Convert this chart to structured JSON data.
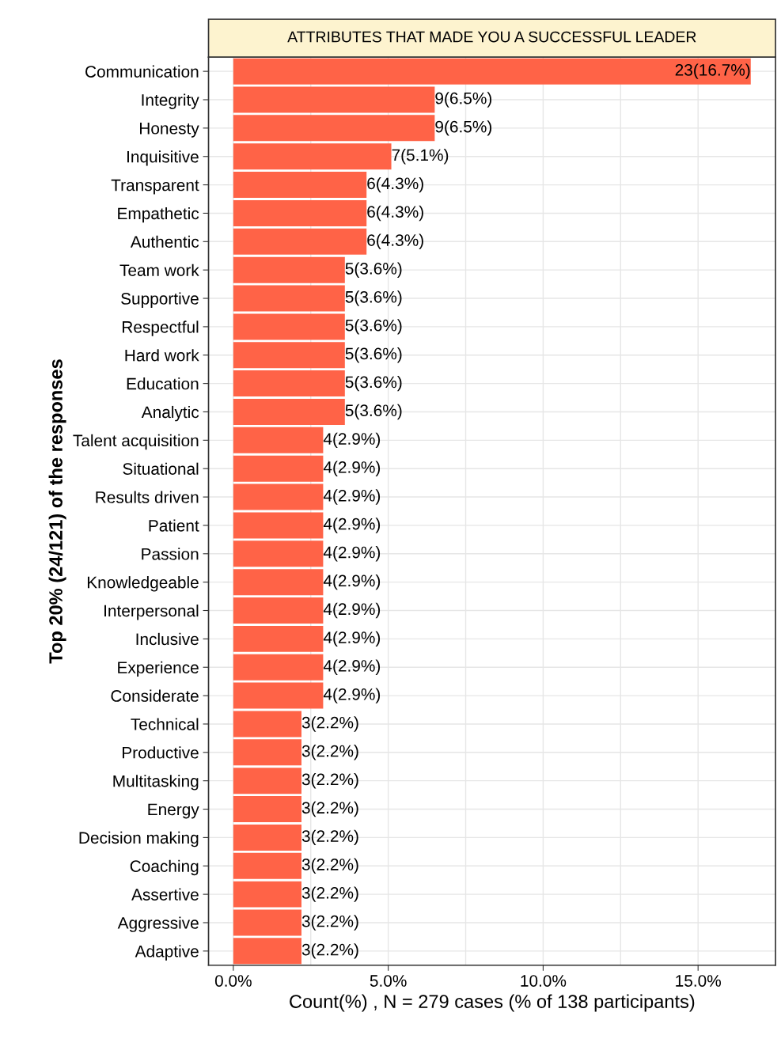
{
  "chart_data": {
    "type": "bar",
    "orientation": "horizontal",
    "title": "ATTRIBUTES THAT MADE YOU A SUCCESSFUL LEADER",
    "xlabel": "Count(%) , N = 279 cases (% of 138 participants)",
    "ylabel": "Top 20% (24/121) of the responses",
    "categories": [
      "Communication",
      "Integrity",
      "Honesty",
      "Inquisitive",
      "Transparent",
      "Empathetic",
      "Authentic",
      "Team work",
      "Supportive",
      "Respectful",
      "Hard work",
      "Education",
      "Analytic",
      "Talent acquisition",
      "Situational",
      "Results driven",
      "Patient",
      "Passion",
      "Knowledgeable",
      "Interpersonal",
      "Inclusive",
      "Experience",
      "Considerate",
      "Technical",
      "Productive",
      "Multitasking",
      "Energy",
      "Decision making",
      "Coaching",
      "Assertive",
      "Aggressive",
      "Adaptive"
    ],
    "values": [
      16.7,
      6.5,
      6.5,
      5.1,
      4.3,
      4.3,
      4.3,
      3.6,
      3.6,
      3.6,
      3.6,
      3.6,
      3.6,
      2.9,
      2.9,
      2.9,
      2.9,
      2.9,
      2.9,
      2.9,
      2.9,
      2.9,
      2.9,
      2.2,
      2.2,
      2.2,
      2.2,
      2.2,
      2.2,
      2.2,
      2.2,
      2.2
    ],
    "value_labels": [
      "23(16.7%)",
      "9(6.5%)",
      "9(6.5%)",
      "7(5.1%)",
      "6(4.3%)",
      "6(4.3%)",
      "6(4.3%)",
      "5(3.6%)",
      "5(3.6%)",
      "5(3.6%)",
      "5(3.6%)",
      "5(3.6%)",
      "5(3.6%)",
      "4(2.9%)",
      "4(2.9%)",
      "4(2.9%)",
      "4(2.9%)",
      "4(2.9%)",
      "4(2.9%)",
      "4(2.9%)",
      "4(2.9%)",
      "4(2.9%)",
      "4(2.9%)",
      "3(2.2%)",
      "3(2.2%)",
      "3(2.2%)",
      "3(2.2%)",
      "3(2.2%)",
      "3(2.2%)",
      "3(2.2%)",
      "3(2.2%)",
      "3(2.2%)"
    ],
    "color": "#ff6347",
    "xlim": [
      -0.8,
      17.5
    ],
    "xticks": [
      {
        "value": 0,
        "label": "0.0%"
      },
      {
        "value": 2.5,
        "label": null
      },
      {
        "value": 5,
        "label": "5.0%"
      },
      {
        "value": 7.5,
        "label": null
      },
      {
        "value": 10,
        "label": "10.0%"
      },
      {
        "value": 12.5,
        "label": null
      },
      {
        "value": 15,
        "label": "15.0%"
      }
    ],
    "grid": true,
    "legend": false
  }
}
